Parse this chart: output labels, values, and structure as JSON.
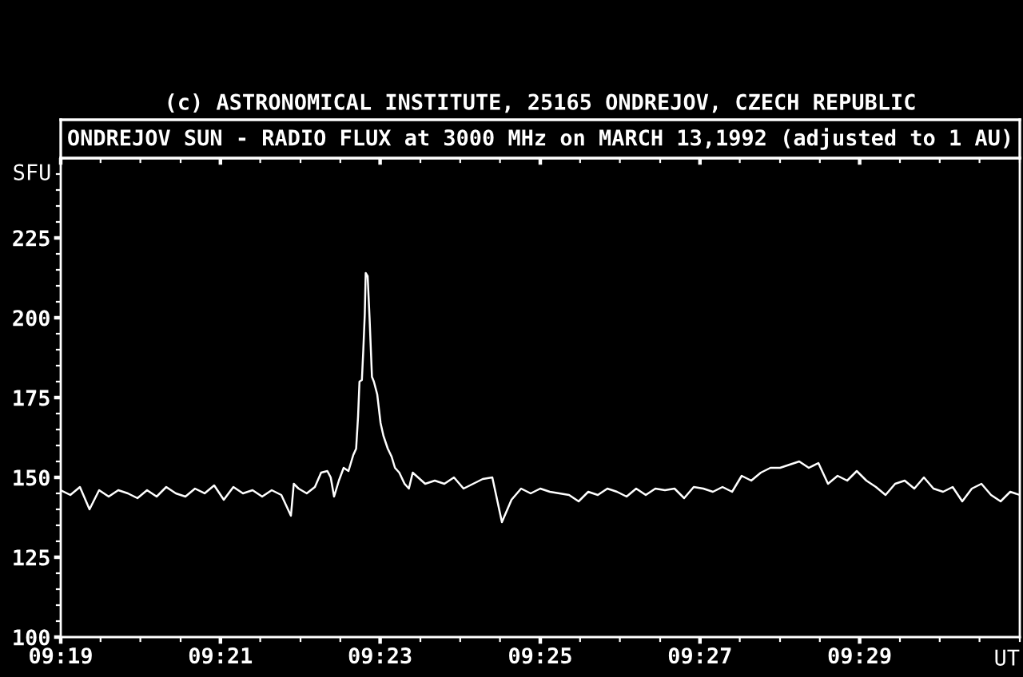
{
  "chart_data": {
    "type": "line",
    "title": "ONDREJOV SUN - RADIO FLUX at 3000 MHz on MARCH 13,1992 (adjusted to 1 AU)",
    "annotations": [
      "(c) ASTRONOMICAL INSTITUTE, 25165 ONDREJOV, CZECH REPUBLIC"
    ],
    "xlabel": "UT",
    "ylabel": "SFU",
    "x": [
      9.3167,
      9.3187,
      9.3207,
      9.3227,
      9.3247,
      9.3267,
      9.3287,
      9.3307,
      9.3327,
      9.3347,
      9.3367,
      9.3387,
      9.3407,
      9.3427,
      9.3447,
      9.3467,
      9.3487,
      9.3507,
      9.3527,
      9.3547,
      9.3567,
      9.3587,
      9.3607,
      9.3627,
      9.3647,
      9.3653,
      9.3663,
      9.368,
      9.3697,
      9.371,
      9.3723,
      9.373,
      9.3737,
      9.3747,
      9.3757,
      9.3767,
      9.3777,
      9.3783,
      9.3787,
      9.379,
      9.3795,
      9.3798,
      9.3801,
      9.3803,
      9.3807,
      9.3811,
      9.3816,
      9.382,
      9.3827,
      9.3834,
      9.384,
      9.3849,
      9.3857,
      9.3864,
      9.3873,
      9.3884,
      9.3893,
      9.3901,
      9.3927,
      9.3947,
      9.3967,
      9.3987,
      9.4007,
      9.4027,
      9.4047,
      9.4067,
      9.4087,
      9.4107,
      9.4127,
      9.4147,
      9.4167,
      9.4187,
      9.4207,
      9.4227,
      9.4247,
      9.4267,
      9.4287,
      9.4307,
      9.4327,
      9.4347,
      9.4367,
      9.4387,
      9.4407,
      9.4427,
      9.4447,
      9.4467,
      9.4487,
      9.4507,
      9.4527,
      9.4547,
      9.4567,
      9.4587,
      9.4607,
      9.4627,
      9.4647,
      9.4667,
      9.4687,
      9.4707,
      9.4727,
      9.4747,
      9.4767,
      9.4787,
      9.4807,
      9.4827,
      9.4847,
      9.4867,
      9.4887,
      9.4907,
      9.4927,
      9.4947,
      9.4967,
      9.4987,
      9.5007,
      9.5027,
      9.5047,
      9.5067,
      9.5087,
      9.5107,
      9.5127,
      9.5147,
      9.5167
    ],
    "series": [
      {
        "color": "#ffffff",
        "values": [
          146,
          144.5,
          147,
          140,
          146,
          144,
          146,
          145,
          143.5,
          146,
          144,
          147,
          145,
          144,
          146.5,
          145,
          147.5,
          143,
          147,
          145,
          146,
          144,
          146,
          144.5,
          138,
          148,
          146.5,
          145,
          147,
          151.5,
          152,
          150,
          144,
          149,
          153,
          152,
          157,
          159,
          169,
          180,
          180.5,
          190,
          201,
          214,
          213,
          200,
          181.5,
          180,
          176,
          167,
          163,
          159,
          156.5,
          153,
          151.5,
          148,
          146.5,
          151.5,
          148,
          149,
          148,
          150,
          146.5,
          148,
          149.5,
          150,
          136,
          143,
          146.5,
          145,
          146.5,
          145.5,
          145,
          144.5,
          142.5,
          145.5,
          144.5,
          146.5,
          145.5,
          144,
          146.5,
          144.5,
          146.5,
          146,
          146.5,
          143.5,
          147,
          146.5,
          145.5,
          147,
          145.5,
          150.5,
          149,
          151.5,
          153,
          153,
          154,
          155,
          153,
          154.5,
          148,
          150.5,
          149,
          152,
          149,
          147,
          144.5,
          148,
          149,
          146.5,
          150,
          146.5,
          145.5,
          147,
          142.5,
          146.5,
          148,
          144.5,
          142.5,
          145.5,
          144.5
        ]
      }
    ],
    "xlim": [
      9.3167,
      9.5167
    ],
    "xticks": [
      {
        "value": 9.3167,
        "label": "09:19"
      },
      {
        "value": 9.325,
        "label": null
      },
      {
        "value": 9.3333,
        "label": null
      },
      {
        "value": 9.3417,
        "label": null
      },
      {
        "value": 9.35,
        "label": "09:21"
      },
      {
        "value": 9.3583,
        "label": null
      },
      {
        "value": 9.3667,
        "label": null
      },
      {
        "value": 9.375,
        "label": null
      },
      {
        "value": 9.3833,
        "label": "09:23"
      },
      {
        "value": 9.3917,
        "label": null
      },
      {
        "value": 9.4,
        "label": null
      },
      {
        "value": 9.4083,
        "label": null
      },
      {
        "value": 9.4167,
        "label": "09:25"
      },
      {
        "value": 9.425,
        "label": null
      },
      {
        "value": 9.4333,
        "label": null
      },
      {
        "value": 9.4417,
        "label": null
      },
      {
        "value": 9.45,
        "label": "09:27"
      },
      {
        "value": 9.4583,
        "label": null
      },
      {
        "value": 9.4667,
        "label": null
      },
      {
        "value": 9.475,
        "label": null
      },
      {
        "value": 9.4833,
        "label": "09:29"
      },
      {
        "value": 9.4917,
        "label": null
      },
      {
        "value": 9.5,
        "label": null
      },
      {
        "value": 9.5083,
        "label": null
      },
      {
        "value": 9.5167,
        "label": null
      }
    ],
    "ylim": [
      100,
      250
    ],
    "yticks": [
      100,
      {
        "value": 105,
        "label": null
      },
      {
        "value": 110,
        "label": null
      },
      {
        "value": 115,
        "label": null
      },
      {
        "value": 120,
        "label": null
      },
      125,
      {
        "value": 130,
        "label": null
      },
      {
        "value": 135,
        "label": null
      },
      {
        "value": 140,
        "label": null
      },
      {
        "value": 145,
        "label": null
      },
      150,
      {
        "value": 155,
        "label": null
      },
      {
        "value": 160,
        "label": null
      },
      {
        "value": 165,
        "label": null
      },
      {
        "value": 170,
        "label": null
      },
      175,
      {
        "value": 180,
        "label": null
      },
      {
        "value": 185,
        "label": null
      },
      {
        "value": 190,
        "label": null
      },
      {
        "value": 195,
        "label": null
      },
      200,
      {
        "value": 205,
        "label": null
      },
      {
        "value": 210,
        "label": null
      },
      {
        "value": 215,
        "label": null
      },
      {
        "value": 220,
        "label": null
      },
      225,
      {
        "value": 230,
        "label": null
      },
      {
        "value": 235,
        "label": null
      },
      {
        "value": 240,
        "label": null
      },
      {
        "value": 245,
        "label": null
      }
    ]
  }
}
